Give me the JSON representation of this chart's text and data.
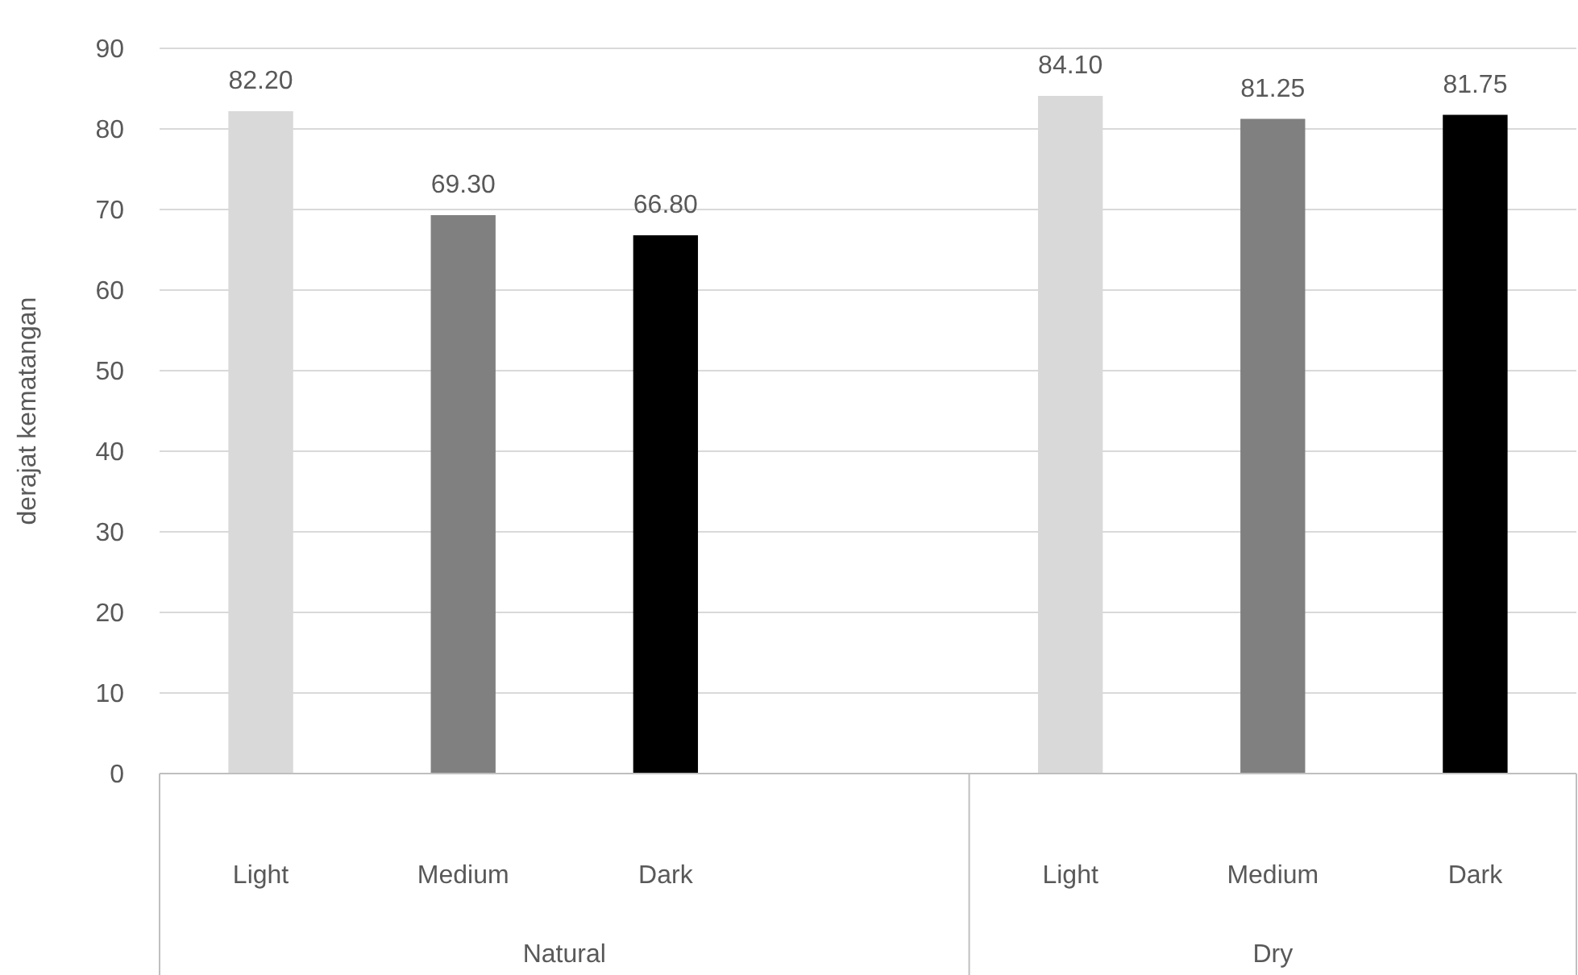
{
  "chart_data": {
    "type": "bar",
    "ylabel": "derajat kematangan",
    "categories": [
      "Light",
      "Medium",
      "Dark",
      null,
      "Light",
      "Medium",
      "Dark"
    ],
    "values": [
      82.2,
      69.3,
      66.8,
      null,
      84.1,
      81.25,
      81.75
    ],
    "colors": [
      "#d9d9d9",
      "#808080",
      "#000000",
      null,
      "#d9d9d9",
      "#808080",
      "#000000"
    ],
    "value_labels": [
      "82.20",
      "69.30",
      "66.80",
      null,
      "84.10",
      "81.25",
      "81.75"
    ],
    "annotations": [
      "Natural",
      "Dry"
    ],
    "ylim": [
      0,
      90
    ],
    "yticks": [
      0,
      10,
      20,
      30,
      40,
      50,
      60,
      70,
      80,
      90
    ],
    "grid": "y"
  }
}
